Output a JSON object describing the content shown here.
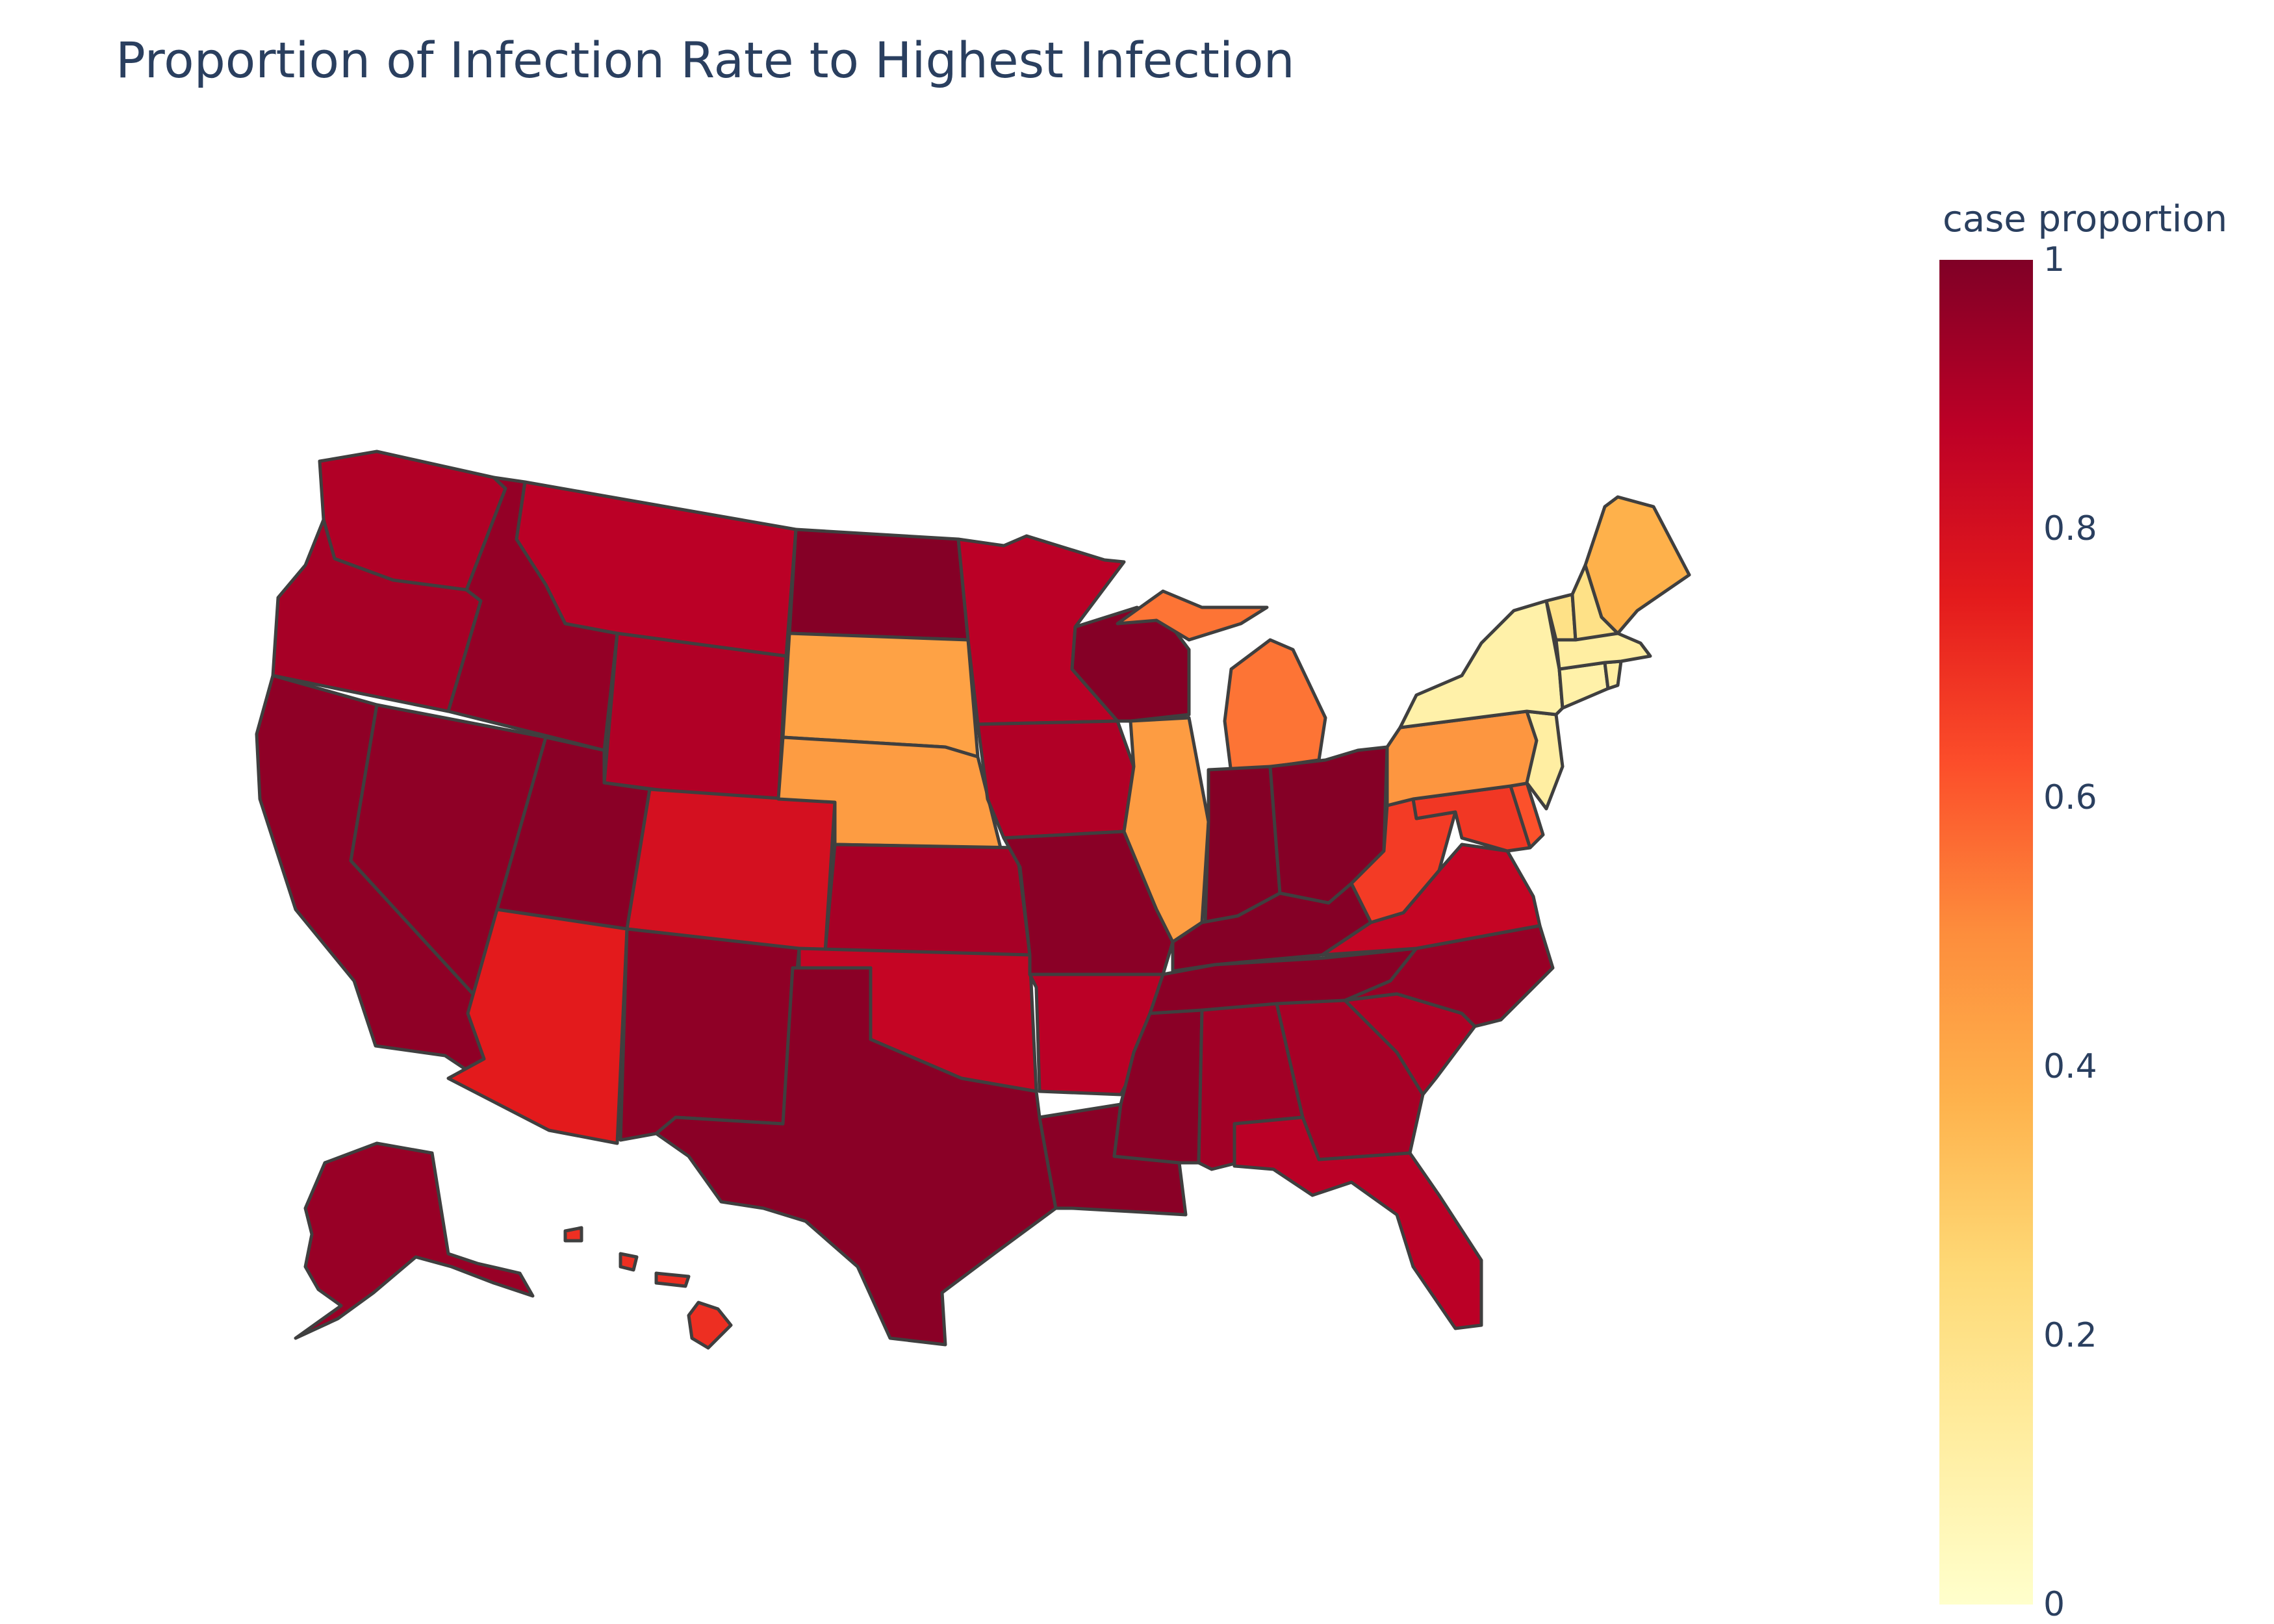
{
  "title": "Proportion of Infection Rate to Highest Infection",
  "colorbar": {
    "title": "case proportion",
    "ticks": [
      "0",
      "0.2",
      "0.4",
      "0.6",
      "0.8",
      "1"
    ],
    "range": [
      0,
      1
    ],
    "colorscale": [
      "#ffffcc",
      "#ffeda0",
      "#fed976",
      "#feb24c",
      "#fd8d3c",
      "#fc4e2a",
      "#e31a1c",
      "#bd0026",
      "#800026"
    ]
  },
  "map_data": {
    "type": "choropleth",
    "scope": "usa",
    "states": [
      {
        "code": "WA",
        "value": 0.9
      },
      {
        "code": "OR",
        "value": 0.92
      },
      {
        "code": "CA",
        "value": 0.97
      },
      {
        "code": "NV",
        "value": 0.97
      },
      {
        "code": "ID",
        "value": 0.96
      },
      {
        "code": "MT",
        "value": 0.88
      },
      {
        "code": "WY",
        "value": 0.9
      },
      {
        "code": "UT",
        "value": 0.98
      },
      {
        "code": "AZ",
        "value": 0.75
      },
      {
        "code": "CO",
        "value": 0.8
      },
      {
        "code": "NM",
        "value": 0.97
      },
      {
        "code": "ND",
        "value": 0.99
      },
      {
        "code": "SD",
        "value": 0.43
      },
      {
        "code": "NE",
        "value": 0.45
      },
      {
        "code": "KS",
        "value": 0.92
      },
      {
        "code": "OK",
        "value": 0.85
      },
      {
        "code": "TX",
        "value": 0.98
      },
      {
        "code": "MN",
        "value": 0.88
      },
      {
        "code": "IA",
        "value": 0.9
      },
      {
        "code": "MO",
        "value": 0.98
      },
      {
        "code": "AR",
        "value": 0.88
      },
      {
        "code": "LA",
        "value": 0.98
      },
      {
        "code": "WI",
        "value": 0.99
      },
      {
        "code": "IL",
        "value": 0.45
      },
      {
        "code": "MI",
        "value": 0.55
      },
      {
        "code": "IN",
        "value": 0.99
      },
      {
        "code": "OH",
        "value": 0.99
      },
      {
        "code": "KY",
        "value": 0.99
      },
      {
        "code": "TN",
        "value": 0.98
      },
      {
        "code": "MS",
        "value": 0.98
      },
      {
        "code": "AL",
        "value": 0.93
      },
      {
        "code": "GA",
        "value": 0.92
      },
      {
        "code": "FL",
        "value": 0.88
      },
      {
        "code": "SC",
        "value": 0.9
      },
      {
        "code": "NC",
        "value": 0.95
      },
      {
        "code": "VA",
        "value": 0.85
      },
      {
        "code": "WV",
        "value": 0.67
      },
      {
        "code": "MD",
        "value": 0.68
      },
      {
        "code": "DE",
        "value": 0.62
      },
      {
        "code": "PA",
        "value": 0.47
      },
      {
        "code": "NJ",
        "value": 0.12
      },
      {
        "code": "NY",
        "value": 0.1
      },
      {
        "code": "CT",
        "value": 0.1
      },
      {
        "code": "RI",
        "value": 0.12
      },
      {
        "code": "MA",
        "value": 0.12
      },
      {
        "code": "VT",
        "value": 0.2
      },
      {
        "code": "NH",
        "value": 0.2
      },
      {
        "code": "ME",
        "value": 0.38
      },
      {
        "code": "AK",
        "value": 0.95
      },
      {
        "code": "HI",
        "value": 0.7
      }
    ]
  }
}
